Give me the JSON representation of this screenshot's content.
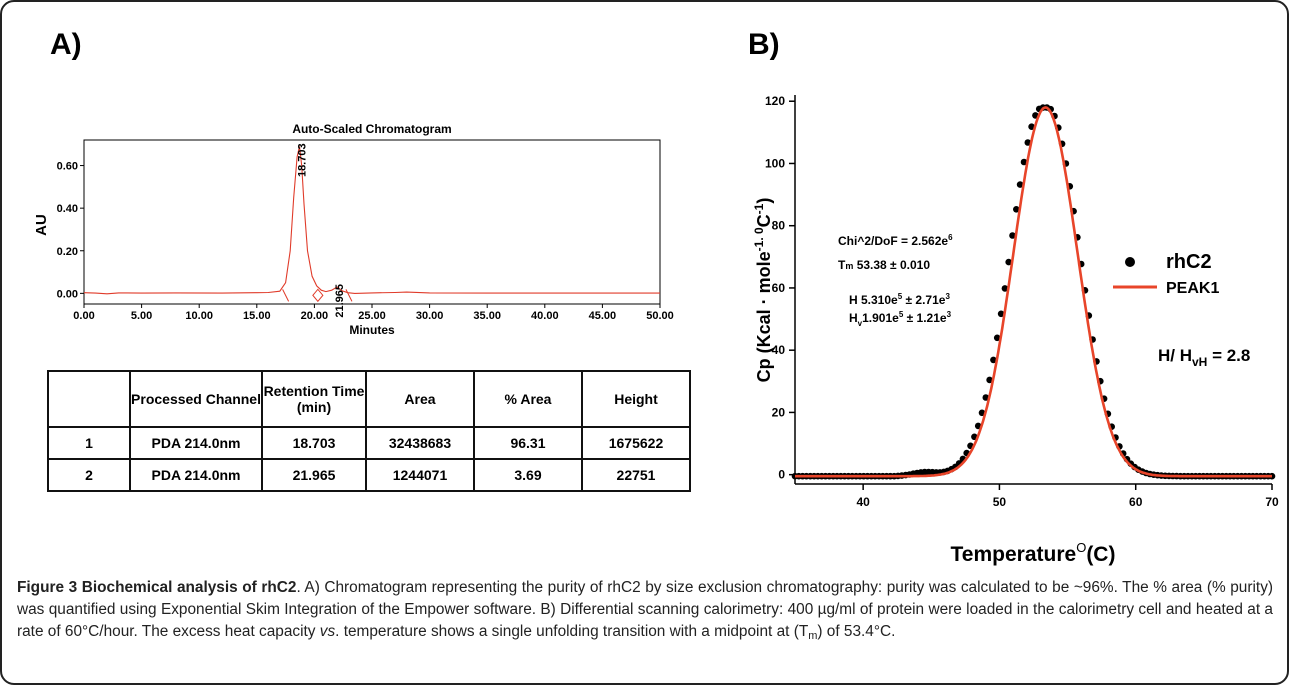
{
  "panel_a_label": "A)",
  "panel_b_label": "B)",
  "chart_data": [
    {
      "type": "line",
      "title": "Auto-Scaled Chromatogram",
      "xlabel": "Minutes",
      "ylabel": "AU",
      "xlim": [
        0,
        50
      ],
      "ylim": [
        -0.05,
        0.72
      ],
      "x_ticks": [
        "0.00",
        "5.00",
        "10.00",
        "15.00",
        "20.00",
        "25.00",
        "30.00",
        "35.00",
        "40.00",
        "45.00",
        "50.00"
      ],
      "y_ticks": [
        "0.00",
        "0.20",
        "0.40",
        "0.60"
      ],
      "peaks": [
        {
          "retention_time": 18.703,
          "label": "18.703",
          "height_au": 0.69
        },
        {
          "retention_time": 21.965,
          "label": "21.965",
          "height_au": 0.03
        }
      ],
      "series": [
        {
          "x": [
            0,
            1,
            2,
            3,
            5,
            8,
            12,
            15,
            16,
            17,
            17.5,
            17.9,
            18.2,
            18.5,
            18.703,
            18.9,
            19.1,
            19.4,
            19.8,
            20.2,
            20.6,
            21.0,
            21.5,
            21.965,
            22.4,
            22.9,
            23.5,
            25,
            27,
            28,
            30,
            35,
            40,
            45,
            50
          ],
          "y": [
            0.003,
            0.001,
            -0.002,
            0.002,
            0.001,
            0.002,
            0.001,
            0.003,
            0.004,
            0.01,
            0.05,
            0.2,
            0.45,
            0.64,
            0.69,
            0.6,
            0.42,
            0.2,
            0.08,
            0.035,
            0.015,
            0.008,
            0.015,
            0.03,
            0.012,
            0.003,
            0.0,
            0.002,
            0.004,
            0.006,
            0.002,
            0.001,
            0.001,
            0.001,
            0.001
          ]
        }
      ],
      "integration_marks": [
        {
          "x": 17.5,
          "label": ""
        },
        {
          "x": 20.3,
          "label": ""
        },
        {
          "x": 23.0,
          "label": ""
        }
      ]
    },
    {
      "type": "scatter",
      "xlabel": "Temperature",
      "xlabel_superscript": "O",
      "xlabel_unit": "(C)",
      "ylabel": "Cp (Kcal · mole",
      "ylabel_superscript": "-1. 0",
      "ylabel_tail": "C",
      "ylabel_tail_superscript": "-1",
      "ylabel_close": ")",
      "xlim": [
        35,
        70
      ],
      "ylim": [
        -3,
        122
      ],
      "x_ticks": [
        40,
        50,
        60,
        70
      ],
      "y_ticks": [
        0,
        20,
        40,
        60,
        80,
        100,
        120
      ],
      "series": [
        {
          "name": "rhC2",
          "style": "points"
        },
        {
          "name": "PEAK1",
          "style": "line",
          "color": "#e8452a"
        }
      ],
      "fit": {
        "tm": 53.38,
        "cp_max": 118.5,
        "sigma": 2.35,
        "baseline": -0.5
      },
      "annotations": {
        "chi": "Chi^2/DoF = 2.562e",
        "chi_exp": "6",
        "tm_prefix": "T",
        "tm_sub": "m",
        "tm_text": " 53.38 ± 0.010",
        "h_text": "H  5.310e",
        "h_exp": "5",
        "h_err": " ± 2.71e",
        "h_err_exp": "3",
        "hv_text": "H",
        "hv_sub": "v",
        "hv_val": "1.901e",
        "hv_exp": "5",
        "hv_err": " ± 1.21e",
        "hv_err_exp": "3",
        "ratio_prefix": "H/  H",
        "ratio_sub": "vH",
        "ratio_tail": " = 2.8"
      }
    }
  ],
  "table": {
    "headers": [
      "",
      "Processed Channel",
      "Retention Time (min)",
      "Area",
      "% Area",
      "Height"
    ],
    "rows": [
      [
        "1",
        "PDA 214.0nm",
        "18.703",
        "32438683",
        "96.31",
        "1675622"
      ],
      [
        "2",
        "PDA 214.0nm",
        "21.965",
        "1244071",
        "3.69",
        "22751"
      ]
    ]
  },
  "caption": {
    "head": "Figure 3 Biochemical analysis of rhC2",
    "p1": ". A) Chromatogram representing the purity of rhC2 by size exclusion chromatography: purity was calculated to be ~96%. The % area (% purity) was quantified using Exponential Skim Integration of the Empower software. B) Differential scanning calorimetry: 400 µg/ml of protein were loaded in the calorimetry cell and heated at a rate of 60°C/hour. The excess heat capacity ",
    "vs": "vs",
    "p2": ". temperature shows a single unfolding transition with a midpoint at (T",
    "sub": "m",
    "p3": ") of 53.4°C."
  }
}
